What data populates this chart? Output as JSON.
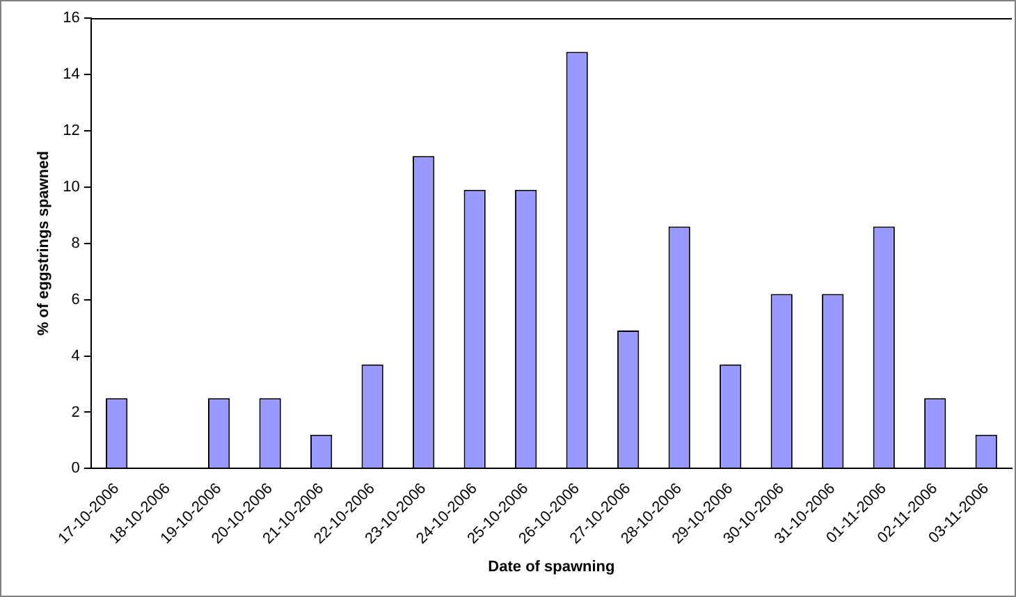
{
  "chart_data": {
    "type": "bar",
    "xlabel": "Date of spawning",
    "ylabel": "% of eggstrings spawned",
    "categories": [
      "17-10-2006",
      "18-10-2006",
      "19-10-2006",
      "20-10-2006",
      "21-10-2006",
      "22-10-2006",
      "23-10-2006",
      "24-10-2006",
      "25-10-2006",
      "26-10-2006",
      "27-10-2006",
      "28-10-2006",
      "29-10-2006",
      "30-10-2006",
      "31-10-2006",
      "01-11-2006",
      "02-11-2006",
      "03-11-2006"
    ],
    "values": [
      2.5,
      0,
      2.5,
      2.5,
      1.2,
      3.7,
      11.1,
      9.9,
      9.9,
      14.8,
      4.9,
      8.6,
      3.7,
      6.2,
      6.2,
      8.6,
      2.5,
      1.2
    ],
    "color": "#9999ff",
    "ylim": [
      0,
      16
    ],
    "yticks": [
      0,
      2,
      4,
      6,
      8,
      10,
      12,
      14,
      16
    ],
    "grid": false,
    "legend": false
  }
}
